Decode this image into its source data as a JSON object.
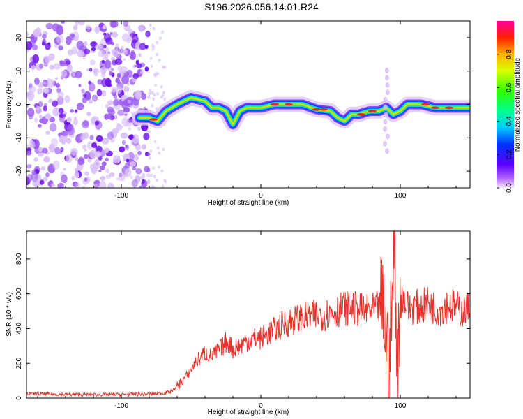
{
  "title": "S196.2026.056.14.01.R24",
  "colors": {
    "spectrum_noise": "#9b5cf0",
    "snr_line": "#e8312a",
    "axis": "#000000"
  },
  "chart_data": [
    {
      "type": "heatmap",
      "name": "spectrogram",
      "xlabel": "Height of straight line (km)",
      "ylabel": "Frequency (Hz)",
      "xlim": [
        -168,
        150
      ],
      "ylim": [
        -25,
        25
      ],
      "xticks": [
        -100,
        0,
        100
      ],
      "yticks": [
        -20,
        -10,
        0,
        10,
        20
      ],
      "ridge": [
        {
          "x": -87,
          "y": -4
        },
        {
          "x": -80,
          "y": -4
        },
        {
          "x": -74,
          "y": -5
        },
        {
          "x": -68,
          "y": -2
        },
        {
          "x": -60,
          "y": 0
        },
        {
          "x": -50,
          "y": 2
        },
        {
          "x": -40,
          "y": 1
        },
        {
          "x": -35,
          "y": -1
        },
        {
          "x": -30,
          "y": -1
        },
        {
          "x": -25,
          "y": -2
        },
        {
          "x": -20,
          "y": -6
        },
        {
          "x": -15,
          "y": -2
        },
        {
          "x": -10,
          "y": -1
        },
        {
          "x": 0,
          "y": -1
        },
        {
          "x": 10,
          "y": 0
        },
        {
          "x": 20,
          "y": 0
        },
        {
          "x": 30,
          "y": 0
        },
        {
          "x": 40,
          "y": -1.5
        },
        {
          "x": 50,
          "y": -2
        },
        {
          "x": 55,
          "y": -4
        },
        {
          "x": 60,
          "y": -5
        },
        {
          "x": 65,
          "y": -3
        },
        {
          "x": 70,
          "y": -3
        },
        {
          "x": 78,
          "y": -2
        },
        {
          "x": 85,
          "y": -2
        },
        {
          "x": 90,
          "y": -1
        },
        {
          "x": 95,
          "y": -3
        },
        {
          "x": 100,
          "y": -2
        },
        {
          "x": 105,
          "y": 0
        },
        {
          "x": 115,
          "y": 0
        },
        {
          "x": 125,
          "y": -1
        },
        {
          "x": 140,
          "y": -1
        },
        {
          "x": 150,
          "y": -1
        }
      ],
      "colorbar": {
        "label": "Normalized spectral amplitude",
        "ticks": [
          "0.0",
          "0.2",
          "0.4",
          "0.6",
          "0.8"
        ],
        "range": [
          0,
          1
        ]
      }
    },
    {
      "type": "line",
      "name": "snr",
      "xlabel": "Height of straight line (km)",
      "ylabel": "SNR (10 * v/v)",
      "xlim": [
        -168,
        150
      ],
      "ylim": [
        0,
        960
      ],
      "xticks": [
        -100,
        0,
        100
      ],
      "yticks": [
        0,
        200,
        400,
        600,
        800
      ],
      "series": [
        {
          "name": "SNR",
          "x": [
            -168,
            -150,
            -130,
            -110,
            -90,
            -75,
            -65,
            -58,
            -52,
            -48,
            -44,
            -40,
            -36,
            -32,
            -28,
            -24,
            -20,
            -15,
            -10,
            -5,
            0,
            5,
            10,
            15,
            20,
            25,
            30,
            35,
            40,
            45,
            50,
            55,
            60,
            65,
            70,
            75,
            80,
            85,
            88,
            92,
            94,
            96,
            98,
            100,
            102,
            106,
            110,
            115,
            120,
            125,
            130,
            135,
            140,
            145,
            150
          ],
          "y": [
            25,
            22,
            20,
            20,
            22,
            25,
            35,
            80,
            140,
            190,
            230,
            260,
            240,
            260,
            290,
            330,
            280,
            300,
            330,
            340,
            345,
            370,
            390,
            420,
            440,
            450,
            460,
            470,
            475,
            480,
            490,
            505,
            520,
            515,
            510,
            500,
            505,
            520,
            510,
            180,
            520,
            900,
            140,
            560,
            580,
            510,
            530,
            520,
            545,
            510,
            515,
            540,
            520,
            500,
            520
          ]
        }
      ]
    }
  ]
}
